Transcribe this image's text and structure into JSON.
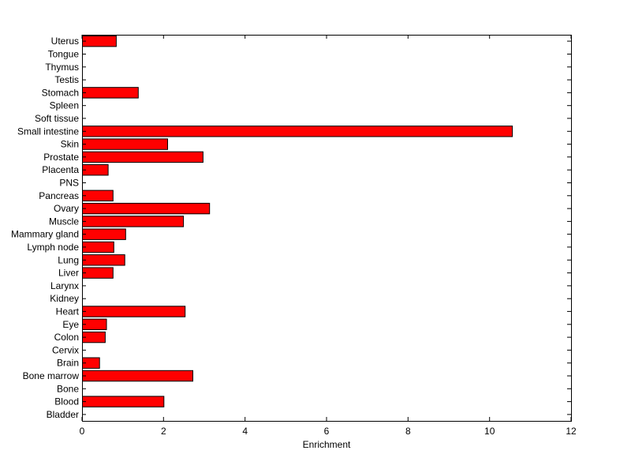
{
  "chart_data": {
    "type": "bar",
    "orientation": "horizontal",
    "title": "",
    "xlabel": "Enrichment",
    "ylabel": "",
    "xlim": [
      0,
      12
    ],
    "xticks": [
      "0",
      "2",
      "4",
      "6",
      "8",
      "10",
      "12"
    ],
    "grid": false,
    "legend": "none",
    "bar_color": "#ff0000",
    "bar_edge_color": "#000000",
    "categories": [
      "Uterus",
      "Tongue",
      "Thymus",
      "Testis",
      "Stomach",
      "Spleen",
      "Soft tissue",
      "Small intestine",
      "Skin",
      "Prostate",
      "Placenta",
      "PNS",
      "Pancreas",
      "Ovary",
      "Muscle",
      "Mammary gland",
      "Lymph node",
      "Lung",
      "Liver",
      "Larynx",
      "Kidney",
      "Heart",
      "Eye",
      "Colon",
      "Cervix",
      "Brain",
      "Bone marrow",
      "Bone",
      "Blood",
      "Bladder"
    ],
    "values": [
      0.83,
      0,
      0,
      0,
      1.37,
      0,
      0,
      10.55,
      2.09,
      2.96,
      0.63,
      0,
      0.75,
      3.12,
      2.48,
      1.06,
      0.77,
      1.04,
      0.75,
      0,
      0,
      2.52,
      0.59,
      0.56,
      0,
      0.42,
      2.71,
      0,
      2.0,
      0
    ]
  }
}
